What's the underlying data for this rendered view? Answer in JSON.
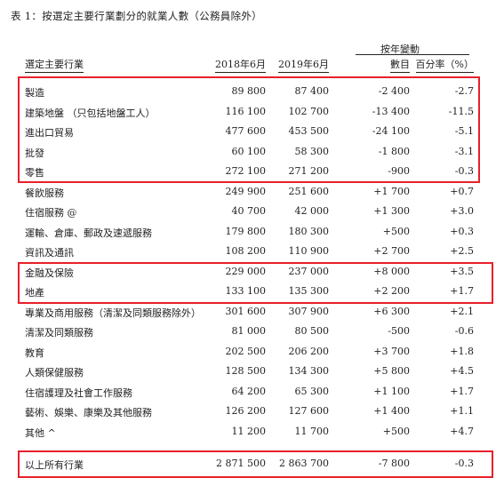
{
  "title": "表 1：按選定主要行業劃分的就業人數（公務員除外）",
  "headers": {
    "industry": "選定主要行業",
    "col2018": "2018年6月",
    "col2019": "2019年6月",
    "change_group": "按年變動",
    "change_count": "數目",
    "change_pct": "百分率（%）"
  },
  "rows": [
    {
      "name": "製造",
      "y2018": "89 800",
      "y2019": "87 400",
      "change": "-2 400",
      "pct": "-2.7"
    },
    {
      "name": "建築地盤 （只包括地盤工人）",
      "y2018": "116 100",
      "y2019": "102 700",
      "change": "-13 400",
      "pct": "-11.5"
    },
    {
      "name": "進出口貿易",
      "y2018": "477 600",
      "y2019": "453 500",
      "change": "-24 100",
      "pct": "-5.1"
    },
    {
      "name": "批發",
      "y2018": "60 100",
      "y2019": "58 300",
      "change": "-1 800",
      "pct": "-3.1"
    },
    {
      "name": "零售",
      "y2018": "272 100",
      "y2019": "271 200",
      "change": "-900",
      "pct": "-0.3"
    },
    {
      "name": "餐飲服務",
      "y2018": "249 900",
      "y2019": "251 600",
      "change": "+1 700",
      "pct": "+0.7"
    },
    {
      "name": "住宿服務 @",
      "y2018": "40 700",
      "y2019": "42 000",
      "change": "+1 300",
      "pct": "+3.0"
    },
    {
      "name": "運輸、倉庫、郵政及速遞服務",
      "y2018": "179 800",
      "y2019": "180 300",
      "change": "+500",
      "pct": "+0.3"
    },
    {
      "name": "資訊及通訊",
      "y2018": "108 200",
      "y2019": "110 900",
      "change": "+2 700",
      "pct": "+2.5"
    },
    {
      "name": "金融及保險",
      "y2018": "229 000",
      "y2019": "237 000",
      "change": "+8 000",
      "pct": "+3.5"
    },
    {
      "name": "地產",
      "y2018": "133 100",
      "y2019": "135 300",
      "change": "+2 200",
      "pct": "+1.7"
    },
    {
      "name": "專業及商用服務（清潔及同類服務除外）",
      "y2018": "301 600",
      "y2019": "307 900",
      "change": "+6 300",
      "pct": "+2.1"
    },
    {
      "name": "清潔及同類服務",
      "y2018": "81 000",
      "y2019": "80 500",
      "change": "-500",
      "pct": "-0.6"
    },
    {
      "name": "教育",
      "y2018": "202 500",
      "y2019": "206 200",
      "change": "+3 700",
      "pct": "+1.8"
    },
    {
      "name": "人類保健服務",
      "y2018": "128 500",
      "y2019": "134 300",
      "change": "+5 800",
      "pct": "+4.5"
    },
    {
      "name": "住宿護理及社會工作服務",
      "y2018": "64 200",
      "y2019": "65 300",
      "change": "+1 100",
      "pct": "+1.7"
    },
    {
      "name": "藝術、娛樂、康樂及其他服務",
      "y2018": "126 200",
      "y2019": "127 600",
      "change": "+1 400",
      "pct": "+1.1"
    },
    {
      "name": "其他 ^",
      "y2018": "11 200",
      "y2019": "11 700",
      "change": "+500",
      "pct": "+4.7"
    }
  ],
  "total": {
    "name": "以上所有行業",
    "y2018": "2 871 500",
    "y2019": "2 863 700",
    "change": "-7 800",
    "pct": "-0.3"
  },
  "highlight_color": "#e8202a"
}
